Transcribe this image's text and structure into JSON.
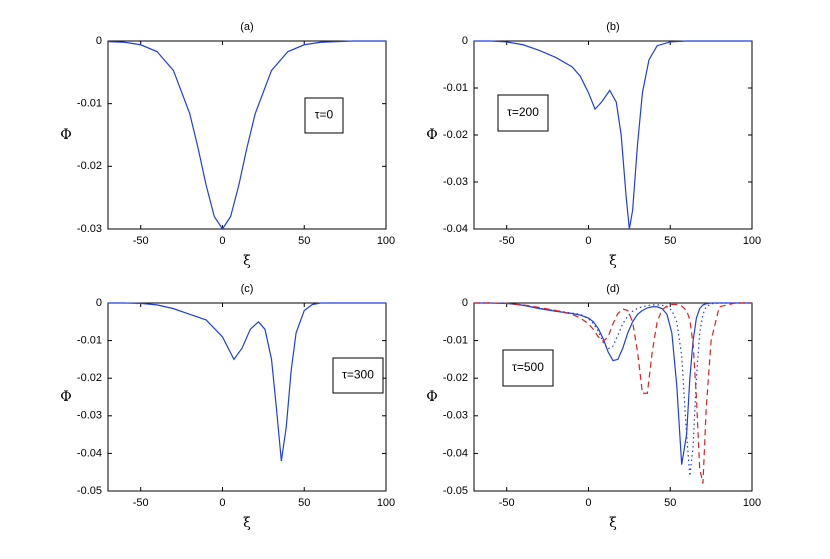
{
  "chart_data": [
    {
      "type": "line",
      "title": "(a)",
      "xlabel": "ξ",
      "ylabel": "Φ",
      "annotation": "τ=0",
      "xlim": [
        -70,
        100
      ],
      "ylim": [
        -0.03,
        0
      ],
      "xticks": [
        -50,
        0,
        50,
        100
      ],
      "yticks": [
        0,
        -0.01,
        -0.02,
        -0.03
      ],
      "x": [
        -70,
        -60,
        -50,
        -40,
        -30,
        -20,
        -15,
        -10,
        -5,
        0,
        5,
        10,
        15,
        20,
        30,
        40,
        50,
        60,
        70,
        80,
        90,
        100
      ],
      "series": [
        {
          "color": "#1f3fe0",
          "linestyle": "solid",
          "values": [
            -0.0001,
            -0.0002,
            -0.0006,
            -0.0017,
            -0.0047,
            -0.0116,
            -0.017,
            -0.023,
            -0.028,
            -0.03,
            -0.028,
            -0.023,
            -0.017,
            -0.0116,
            -0.0047,
            -0.0017,
            -0.0006,
            -0.0002,
            -0.0001,
            0,
            0,
            0
          ]
        }
      ]
    },
    {
      "type": "line",
      "title": "(b)",
      "xlabel": "ξ",
      "ylabel": "Φ",
      "annotation": "τ=200",
      "xlim": [
        -70,
        100
      ],
      "ylim": [
        -0.04,
        0
      ],
      "xticks": [
        -50,
        0,
        50,
        100
      ],
      "yticks": [
        0,
        -0.01,
        -0.02,
        -0.03,
        -0.04
      ],
      "x": [
        -70,
        -60,
        -50,
        -40,
        -30,
        -20,
        -10,
        -5,
        0,
        4,
        8,
        13,
        17,
        20,
        23,
        25,
        27,
        30,
        33,
        37,
        42,
        50,
        60,
        70,
        80,
        90,
        100
      ],
      "series": [
        {
          "color": "#1f3fe0",
          "linestyle": "solid",
          "values": [
            0,
            0,
            -0.0002,
            -0.0008,
            -0.002,
            -0.0035,
            -0.0055,
            -0.0075,
            -0.011,
            -0.0145,
            -0.013,
            -0.0105,
            -0.013,
            -0.02,
            -0.033,
            -0.04,
            -0.036,
            -0.022,
            -0.011,
            -0.004,
            -0.001,
            -0.0002,
            0,
            0,
            0,
            0,
            0
          ]
        }
      ]
    },
    {
      "type": "line",
      "title": "(c)",
      "xlabel": "ξ",
      "ylabel": "Φ",
      "annotation": "τ=300",
      "xlim": [
        -70,
        100
      ],
      "ylim": [
        -0.05,
        0
      ],
      "xticks": [
        -50,
        0,
        50,
        100
      ],
      "yticks": [
        0,
        -0.01,
        -0.02,
        -0.03,
        -0.04,
        -0.05
      ],
      "x": [
        -70,
        -60,
        -50,
        -40,
        -30,
        -20,
        -10,
        0,
        7,
        12,
        17,
        22,
        26,
        30,
        33,
        36,
        39,
        42,
        45,
        50,
        55,
        60,
        70,
        80,
        90,
        100
      ],
      "series": [
        {
          "color": "#1f3fe0",
          "linestyle": "solid",
          "values": [
            0,
            0,
            -0.0001,
            -0.0005,
            -0.0015,
            -0.003,
            -0.0045,
            -0.009,
            -0.015,
            -0.012,
            -0.007,
            -0.005,
            -0.007,
            -0.015,
            -0.028,
            -0.042,
            -0.033,
            -0.018,
            -0.008,
            -0.002,
            -0.0004,
            0,
            0,
            0,
            0,
            0
          ]
        }
      ]
    },
    {
      "type": "line",
      "title": "(d)",
      "xlabel": "ξ",
      "ylabel": "Φ",
      "annotation": "τ=500",
      "xlim": [
        -70,
        100
      ],
      "ylim": [
        -0.05,
        0
      ],
      "xticks": [
        -50,
        0,
        50,
        100
      ],
      "yticks": [
        0,
        -0.01,
        -0.02,
        -0.03,
        -0.04,
        -0.05
      ],
      "x": [
        -70,
        -60,
        -50,
        -40,
        -30,
        -20,
        -10,
        -5,
        0,
        3,
        6,
        9,
        12,
        15,
        18,
        21,
        24,
        27,
        30,
        33,
        36,
        39,
        42,
        45,
        48,
        51,
        54,
        57,
        60,
        62,
        64,
        66,
        68,
        70,
        72,
        75,
        80,
        90,
        100
      ],
      "series": [
        {
          "color": "#1f3fe0",
          "linestyle": "solid",
          "values": [
            0,
            0,
            -0.0001,
            -0.0006,
            -0.0015,
            -0.0022,
            -0.0028,
            -0.0032,
            -0.004,
            -0.005,
            -0.0068,
            -0.0095,
            -0.013,
            -0.0153,
            -0.015,
            -0.012,
            -0.008,
            -0.005,
            -0.003,
            -0.002,
            -0.0013,
            -0.001,
            -0.001,
            -0.0015,
            -0.003,
            -0.008,
            -0.022,
            -0.043,
            -0.035,
            -0.02,
            -0.01,
            -0.004,
            -0.0015,
            -0.0005,
            -0.0002,
            0,
            0,
            0,
            0
          ]
        },
        {
          "color": "#1f3fe0",
          "linestyle": "dotted",
          "values": [
            0,
            0,
            -0.0001,
            -0.0005,
            -0.0014,
            -0.002,
            -0.0027,
            -0.003,
            -0.0042,
            -0.0055,
            -0.0075,
            -0.0105,
            -0.0122,
            -0.0115,
            -0.0085,
            -0.0055,
            -0.0035,
            -0.0022,
            -0.0014,
            -0.001,
            -0.0007,
            -0.0005,
            -0.0005,
            -0.0006,
            -0.001,
            -0.002,
            -0.005,
            -0.014,
            -0.035,
            -0.046,
            -0.038,
            -0.02,
            -0.008,
            -0.003,
            -0.001,
            -0.0002,
            0,
            0,
            0
          ]
        },
        {
          "color": "#e02020",
          "linestyle": "dashed",
          "values": [
            0,
            0,
            -0.0001,
            -0.0005,
            -0.0012,
            -0.002,
            -0.003,
            -0.004,
            -0.0055,
            -0.007,
            -0.009,
            -0.0102,
            -0.009,
            -0.0055,
            -0.0028,
            -0.0016,
            -0.002,
            -0.005,
            -0.013,
            -0.024,
            -0.024,
            -0.013,
            -0.005,
            -0.0018,
            -0.0008,
            -0.0004,
            -0.0004,
            -0.0008,
            -0.002,
            -0.0045,
            -0.011,
            -0.025,
            -0.044,
            -0.048,
            -0.028,
            -0.01,
            -0.001,
            0,
            0
          ]
        }
      ]
    }
  ]
}
